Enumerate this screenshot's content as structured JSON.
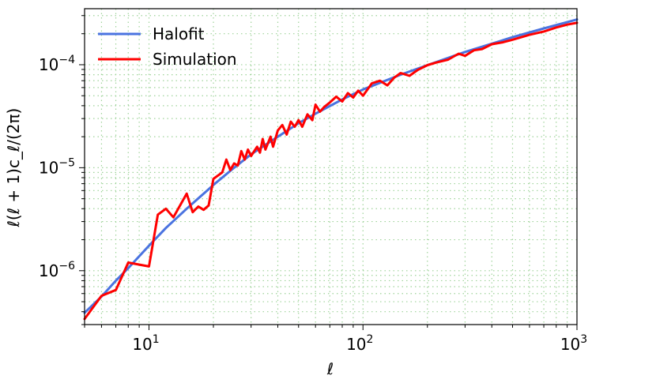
{
  "chart_data": {
    "type": "line",
    "xscale": "log",
    "yscale": "log",
    "xlim": [
      5,
      1000
    ],
    "ylim": [
      3e-07,
      0.00035
    ],
    "xlabel": "ℓ",
    "ylabel": "ℓ(ℓ + 1)c_ℓ/(2π)",
    "x_ticks": [
      {
        "value": 10,
        "label": "10",
        "exp": "1"
      },
      {
        "value": 100,
        "label": "10",
        "exp": "2"
      },
      {
        "value": 1000,
        "label": "10",
        "exp": "3"
      }
    ],
    "y_ticks": [
      {
        "value": 1e-06,
        "label": "10",
        "exp": "−6"
      },
      {
        "value": 1e-05,
        "label": "10",
        "exp": "−5"
      },
      {
        "value": 0.0001,
        "label": "10",
        "exp": "−4"
      }
    ],
    "grid": true,
    "grid_style": "dotted",
    "legend_position": "top-left",
    "series": [
      {
        "name": "Halofit",
        "color": "#4a73e0",
        "x": [
          5,
          6,
          7,
          8,
          10,
          12,
          15,
          20,
          25,
          30,
          40,
          50,
          60,
          80,
          100,
          150,
          200,
          300,
          400,
          500,
          700,
          1000
        ],
        "y": [
          3.9e-07,
          5.6e-07,
          8e-07,
          1.06e-06,
          1.75e-06,
          2.6e-06,
          4e-06,
          6.8e-06,
          1e-05,
          1.35e-05,
          2e-05,
          2.7e-05,
          3.35e-05,
          4.6e-05,
          5.75e-05,
          8e-05,
          9.9e-05,
          0.000133,
          0.00016,
          0.000185,
          0.000225,
          0.000275
        ]
      },
      {
        "name": "Simulation",
        "color": "#ff0000",
        "x": [
          5,
          6,
          7,
          8,
          10,
          11,
          12,
          13,
          15,
          16,
          17,
          18,
          19,
          20,
          22,
          23,
          24,
          25,
          26,
          27,
          28,
          29,
          30,
          32,
          33,
          34,
          35,
          37,
          38,
          40,
          42,
          44,
          46,
          48,
          50,
          52,
          55,
          58,
          60,
          63,
          66,
          70,
          75,
          80,
          85,
          90,
          95,
          100,
          110,
          120,
          130,
          140,
          150,
          165,
          180,
          200,
          220,
          250,
          280,
          300,
          330,
          360,
          400,
          450,
          500,
          550,
          600,
          700,
          800,
          900,
          1000
        ],
        "y": [
          3.4e-07,
          5.7e-07,
          6.5e-07,
          1.2e-06,
          1.1e-06,
          3.5e-06,
          4e-06,
          3.3e-06,
          5.6e-06,
          3.7e-06,
          4.2e-06,
          3.9e-06,
          4.3e-06,
          7.8e-06,
          9e-06,
          1.2e-05,
          9.5e-06,
          1.1e-05,
          1.05e-05,
          1.45e-05,
          1.2e-05,
          1.5e-05,
          1.3e-05,
          1.6e-05,
          1.4e-05,
          1.9e-05,
          1.5e-05,
          2e-05,
          1.6e-05,
          2.3e-05,
          2.6e-05,
          2.1e-05,
          2.8e-05,
          2.5e-05,
          2.9e-05,
          2.5e-05,
          3.3e-05,
          2.9e-05,
          4.1e-05,
          3.5e-05,
          3.9e-05,
          4.3e-05,
          4.9e-05,
          4.4e-05,
          5.3e-05,
          4.8e-05,
          5.6e-05,
          5e-05,
          6.6e-05,
          7e-05,
          6.3e-05,
          7.5e-05,
          8.3e-05,
          7.8e-05,
          8.9e-05,
          9.9e-05,
          0.000105,
          0.000112,
          0.000128,
          0.000122,
          0.000138,
          0.000142,
          0.000158,
          0.000165,
          0.000175,
          0.000185,
          0.000195,
          0.00021,
          0.00023,
          0.000245,
          0.000255
        ]
      }
    ]
  }
}
